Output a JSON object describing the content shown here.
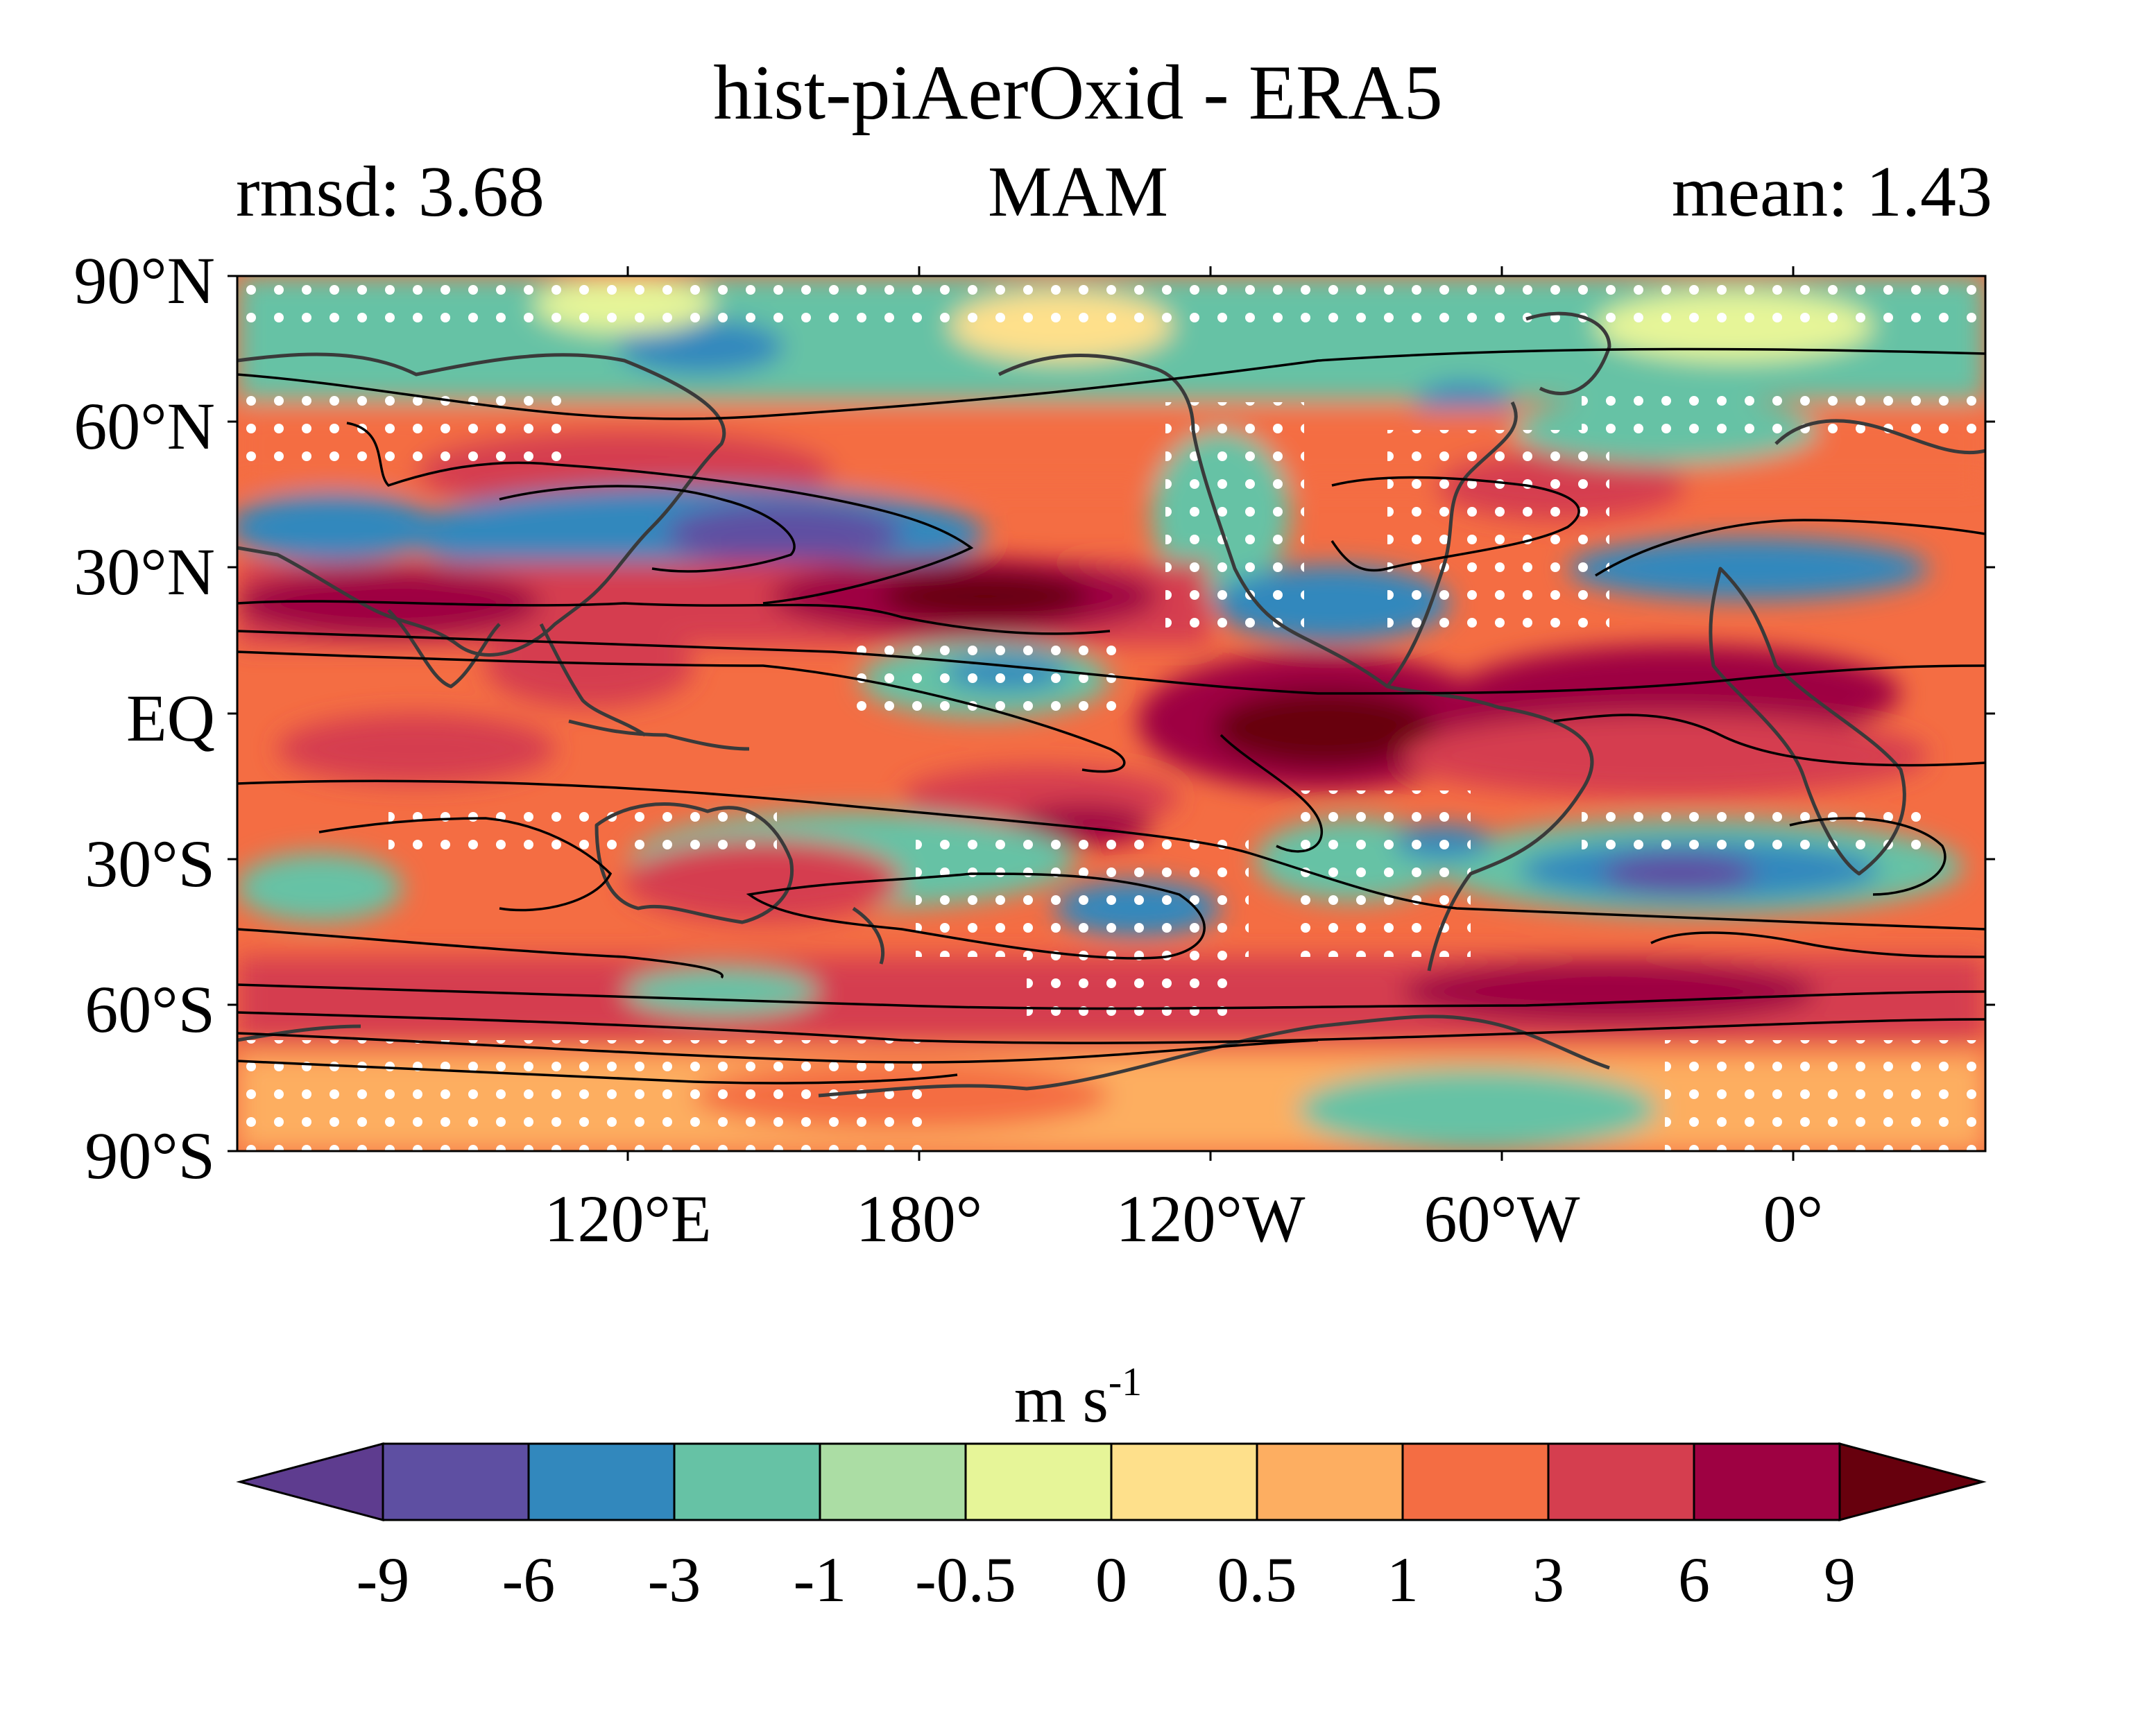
{
  "title": "hist-piAerOxid - ERA5",
  "stats": {
    "left": "rmsd: 3.68",
    "center": "MAM",
    "right": "mean: 1.43"
  },
  "axes": {
    "lat_labels": [
      "90°N",
      "60°N",
      "30°N",
      "EQ",
      "30°S",
      "60°S",
      "90°S"
    ],
    "lon_labels": [
      "120°E",
      "180°",
      "120°W",
      "60°W",
      "0°"
    ]
  },
  "colorbar": {
    "unit_base": "m s",
    "unit_exp": "-1",
    "ticks": [
      "-9",
      "-6",
      "-3",
      "-1",
      "-0.5",
      "0",
      "0.5",
      "1",
      "3",
      "6",
      "9"
    ],
    "colors": [
      "#5e4fa2",
      "#3288bd",
      "#66c2a5",
      "#abdda4",
      "#e6f598",
      "#fee08b",
      "#fdae61",
      "#f46d43",
      "#d53e4f",
      "#9e0142"
    ],
    "under_color": "#5e3c8f",
    "over_color": "#67000d"
  },
  "map_colors": {
    "coast": "#3a3a3a",
    "contour": "#000000",
    "stipple": "#ffffff"
  }
}
